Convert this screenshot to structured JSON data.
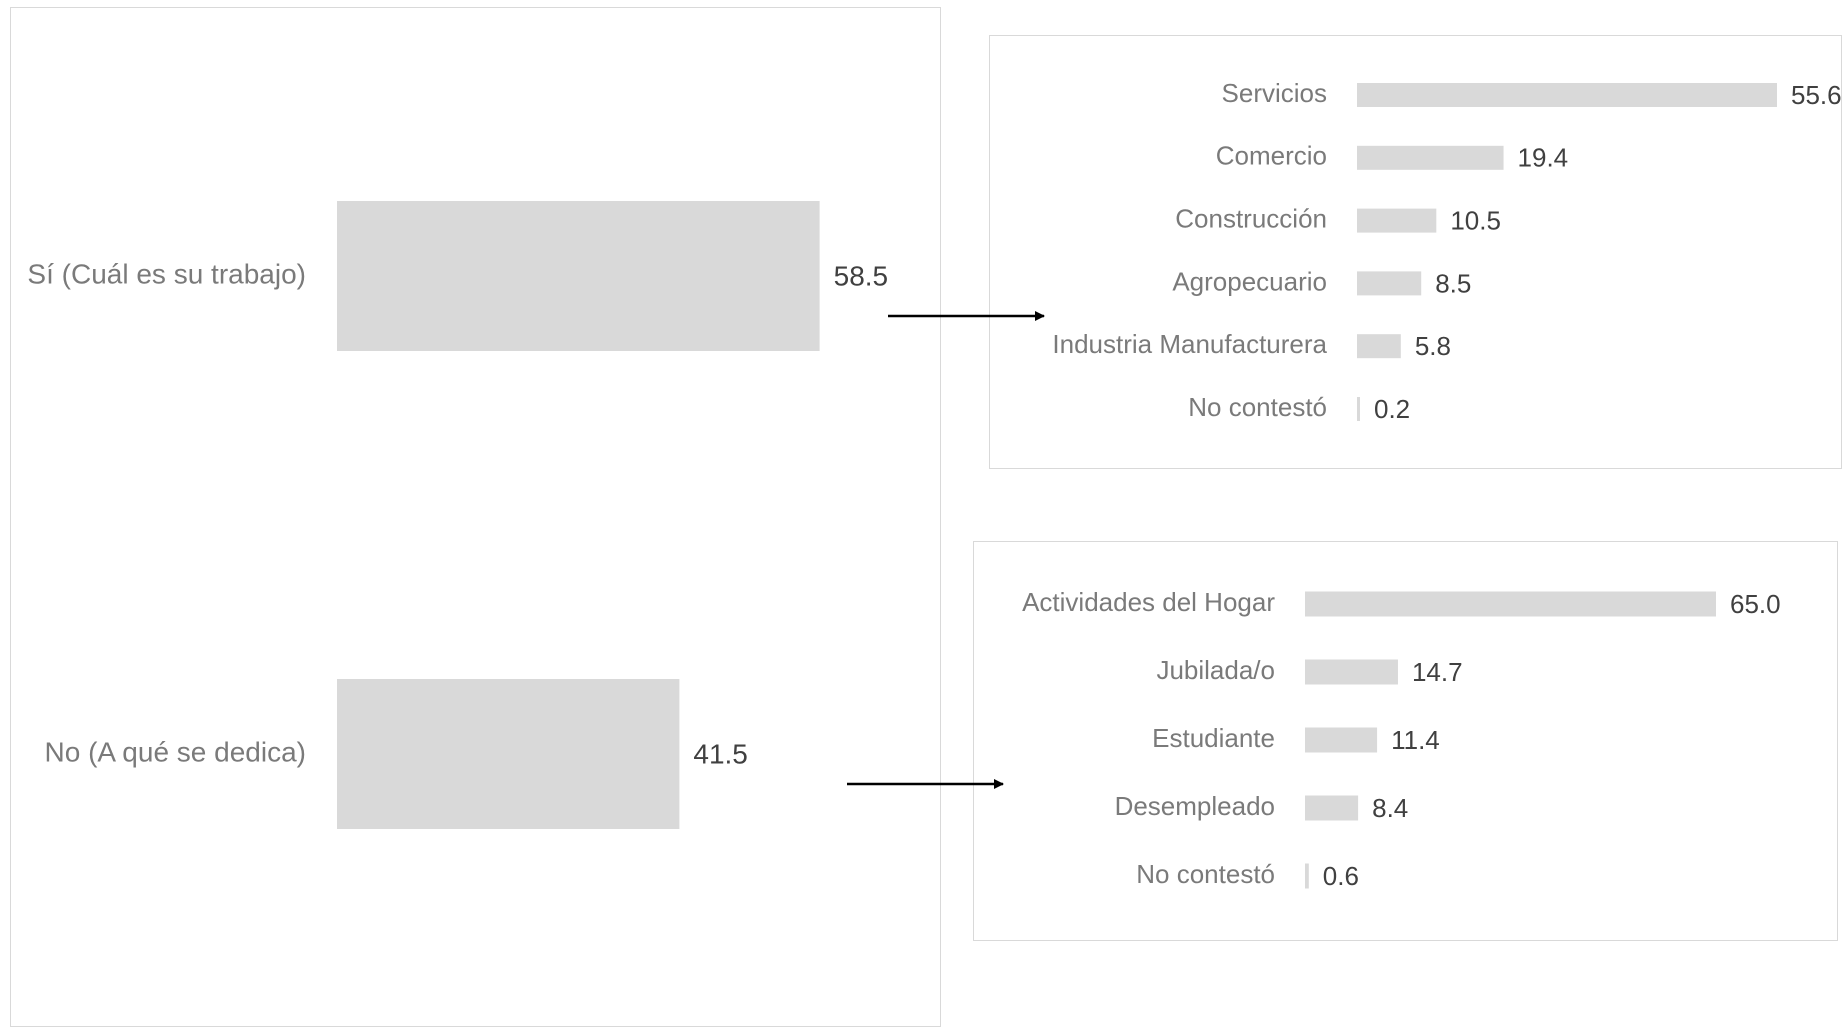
{
  "chart_data": [
    {
      "id": "main",
      "type": "bar",
      "orientation": "horizontal",
      "title": "",
      "categories": [
        "Sí (Cuál es su trabajo)",
        "No (A qué se dedica)"
      ],
      "values": [
        58.5,
        41.5
      ],
      "value_labels": [
        "58.5",
        "41.5"
      ],
      "xlim": [
        0,
        100
      ],
      "grid": false,
      "colors": {
        "bar": "#d9d9d9",
        "label": "#7a7a7a",
        "value": "#404040"
      }
    },
    {
      "id": "trabajo",
      "type": "bar",
      "orientation": "horizontal",
      "title": "",
      "categories": [
        "Servicios",
        "Comercio",
        "Construcción",
        "Agropecuario",
        "Industria Manufacturera",
        "No contestó"
      ],
      "values": [
        55.6,
        19.4,
        10.5,
        8.5,
        5.8,
        0.2
      ],
      "value_labels": [
        "55.6",
        "19.4",
        "10.5",
        "8.5",
        "5.8",
        "0.2"
      ],
      "xlim": [
        0,
        55.6
      ],
      "grid": false,
      "colors": {
        "bar": "#d9d9d9",
        "label": "#7a7a7a",
        "value": "#404040"
      }
    },
    {
      "id": "dedica",
      "type": "bar",
      "orientation": "horizontal",
      "title": "",
      "categories": [
        "Actividades del Hogar",
        "Jubilada/o",
        "Estudiante",
        "Desempleado",
        "No contestó"
      ],
      "values": [
        65.0,
        14.7,
        11.4,
        8.4,
        0.6
      ],
      "value_labels": [
        "65.0",
        "14.7",
        "11.4",
        "8.4",
        "0.6"
      ],
      "xlim": [
        0,
        65.0
      ],
      "grid": false,
      "colors": {
        "bar": "#d9d9d9",
        "label": "#7a7a7a",
        "value": "#404040"
      }
    }
  ],
  "arrows": [
    {
      "from": "Sí (Cuál es su trabajo)",
      "to": "trabajo"
    },
    {
      "from": "No (A qué se dedica)",
      "to": "dedica"
    }
  ]
}
